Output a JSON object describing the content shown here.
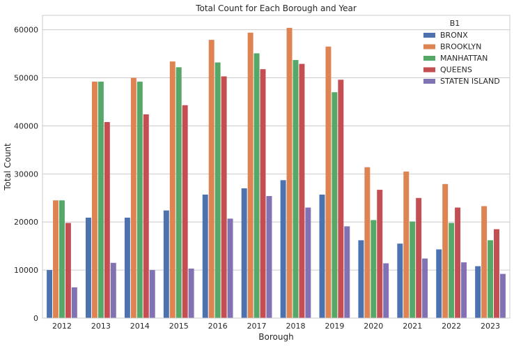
{
  "chart_data": {
    "type": "bar",
    "title": "Total Count for Each Borough and Year",
    "xlabel": "Borough",
    "ylabel": "Total Count",
    "ylim": [
      0,
      63000
    ],
    "yticks": [
      0,
      10000,
      20000,
      30000,
      40000,
      50000,
      60000
    ],
    "grid": true,
    "legend_title": "B1",
    "legend_position": "top-right",
    "categories": [
      "2012",
      "2013",
      "2014",
      "2015",
      "2016",
      "2017",
      "2018",
      "2019",
      "2020",
      "2021",
      "2022",
      "2023"
    ],
    "series": [
      {
        "name": "BRONX",
        "color": "#4c72b0",
        "values": [
          10000,
          20900,
          20900,
          22400,
          25700,
          27000,
          28700,
          25700,
          16200,
          15500,
          14300,
          10800
        ]
      },
      {
        "name": "BROOKLYN",
        "color": "#dd8452",
        "values": [
          24500,
          49200,
          50000,
          53400,
          57900,
          59400,
          60400,
          56500,
          31400,
          30500,
          27900,
          23300
        ]
      },
      {
        "name": "MANHATTAN",
        "color": "#55a868",
        "values": [
          24500,
          49200,
          49200,
          52200,
          53200,
          55100,
          53700,
          47000,
          20400,
          20100,
          19800,
          16200
        ]
      },
      {
        "name": "QUEENS",
        "color": "#c44e52",
        "values": [
          19800,
          40800,
          42400,
          44300,
          50300,
          51800,
          52900,
          49600,
          26700,
          25000,
          23000,
          18500
        ]
      },
      {
        "name": "STATEN ISLAND",
        "color": "#8172b3",
        "values": [
          6400,
          11500,
          10000,
          10300,
          20700,
          25400,
          23000,
          19100,
          11400,
          12400,
          11600,
          9200
        ]
      }
    ]
  }
}
